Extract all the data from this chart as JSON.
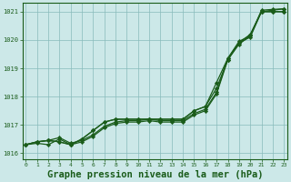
{
  "title": "Graphe pression niveau de la mer (hPa)",
  "x": [
    0,
    1,
    2,
    3,
    4,
    5,
    6,
    7,
    8,
    9,
    10,
    11,
    12,
    13,
    14,
    15,
    16,
    17,
    18,
    19,
    20,
    21,
    22,
    23
  ],
  "line1": [
    1016.3,
    1016.35,
    1016.3,
    1016.5,
    1016.3,
    1016.4,
    1016.6,
    1016.9,
    1017.05,
    1017.1,
    1017.1,
    1017.15,
    1017.1,
    1017.1,
    1017.1,
    1017.35,
    1017.5,
    1018.1,
    1019.3,
    1019.9,
    1020.1,
    1021.0,
    1021.05,
    1021.1
  ],
  "line2": [
    1016.3,
    1016.4,
    1016.45,
    1016.55,
    1016.35,
    1016.45,
    1016.65,
    1016.95,
    1017.1,
    1017.15,
    1017.15,
    1017.2,
    1017.15,
    1017.15,
    1017.15,
    1017.4,
    1017.55,
    1018.15,
    1019.35,
    1019.95,
    1020.15,
    1021.05,
    1021.08,
    1021.1
  ],
  "line3": [
    1016.3,
    1016.4,
    1016.45,
    1016.4,
    1016.3,
    1016.5,
    1016.8,
    1017.1,
    1017.2,
    1017.2,
    1017.2,
    1017.2,
    1017.2,
    1017.2,
    1017.2,
    1017.5,
    1017.65,
    1018.3,
    1019.3,
    1019.85,
    1020.15,
    1021.0,
    1021.0,
    1021.0
  ],
  "line4": [
    1016.3,
    1016.4,
    1016.45,
    1016.4,
    1016.3,
    1016.5,
    1016.8,
    1017.1,
    1017.2,
    1017.2,
    1017.2,
    1017.2,
    1017.2,
    1017.2,
    1017.2,
    1017.5,
    1017.65,
    1018.5,
    1019.35,
    1019.9,
    1020.2,
    1021.0,
    1021.0,
    1021.0
  ],
  "ylim": [
    1015.8,
    1021.3
  ],
  "yticks": [
    1016,
    1017,
    1018,
    1019,
    1020,
    1021
  ],
  "xticks": [
    0,
    1,
    2,
    3,
    4,
    5,
    6,
    7,
    8,
    9,
    10,
    11,
    12,
    13,
    14,
    15,
    16,
    17,
    18,
    19,
    20,
    21,
    22,
    23
  ],
  "line_color": "#1a5c1a",
  "bg_color": "#cce8e8",
  "grid_color": "#88bbbb",
  "title_fontsize": 7.5,
  "marker_size": 2.2,
  "linewidth": 0.9
}
